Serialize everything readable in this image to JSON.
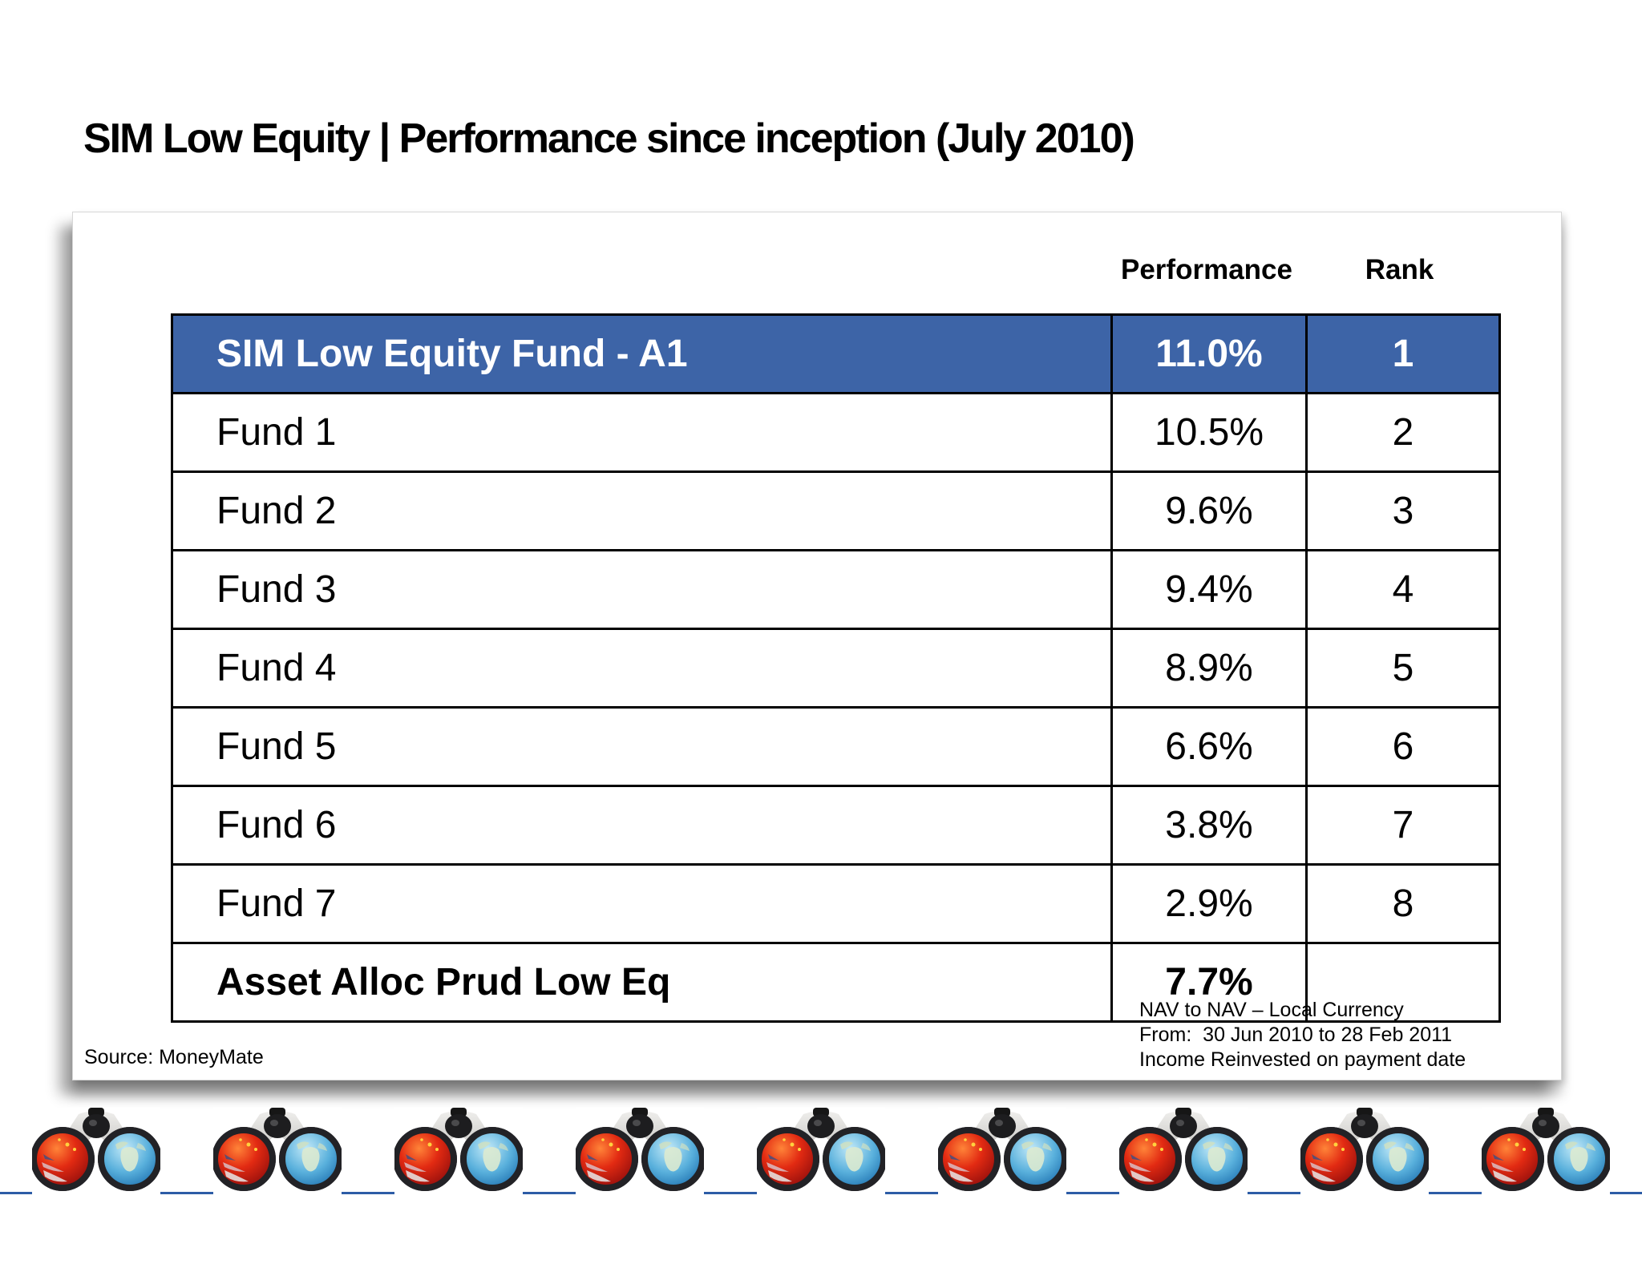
{
  "slide": {
    "title": "SIM Low Equity | Performance since inception (July 2010)",
    "source_note": "Source: MoneyMate"
  },
  "table": {
    "columns": [
      "Performance",
      "Rank"
    ],
    "rows": [
      {
        "name": "SIM Low Equity Fund - A1",
        "performance": "11.0%",
        "rank": "1",
        "highlight": true,
        "bold": true
      },
      {
        "name": "Fund 1",
        "performance": "10.5%",
        "rank": "2",
        "highlight": false,
        "bold": false
      },
      {
        "name": "Fund 2",
        "performance": "9.6%",
        "rank": "3",
        "highlight": false,
        "bold": false
      },
      {
        "name": "Fund 3",
        "performance": "9.4%",
        "rank": "4",
        "highlight": false,
        "bold": false
      },
      {
        "name": "Fund 4",
        "performance": "8.9%",
        "rank": "5",
        "highlight": false,
        "bold": false
      },
      {
        "name": "Fund 5",
        "performance": "6.6%",
        "rank": "6",
        "highlight": false,
        "bold": false
      },
      {
        "name": "Fund 6",
        "performance": "3.8%",
        "rank": "7",
        "highlight": false,
        "bold": false
      },
      {
        "name": "Fund 7",
        "performance": "2.9%",
        "rank": "8",
        "highlight": false,
        "bold": false
      },
      {
        "name": "Asset Alloc Prud Low Eq",
        "performance": "7.7%",
        "rank": "",
        "highlight": false,
        "bold": true
      }
    ]
  },
  "footnotes": {
    "lines": [
      "NAV to NAV – Local Currency",
      "From:  30 Jun 2010 to 28 Feb 2011",
      "Income Reinvested on payment date"
    ]
  },
  "decoration": {
    "icon": "binoculars-globes-icon",
    "count": 9
  },
  "colors": {
    "highlight_row_bg": "#3D64A7",
    "highlight_row_text": "#FFFFFF",
    "table_border": "#000000",
    "divider_line": "#2D5CA6"
  }
}
